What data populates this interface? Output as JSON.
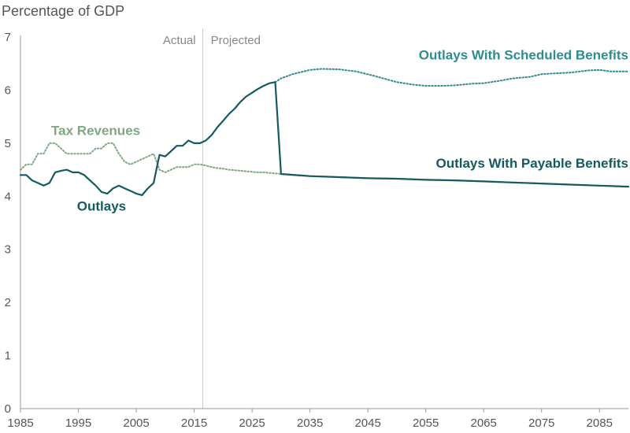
{
  "chart_data": {
    "type": "line",
    "ylabel": "Percentage of GDP",
    "xlim": [
      1985,
      2090
    ],
    "ylim": [
      0,
      7
    ],
    "x_ticks": [
      1985,
      1995,
      2005,
      2015,
      2025,
      2035,
      2045,
      2055,
      2065,
      2075,
      2085
    ],
    "y_ticks": [
      0,
      1,
      2,
      3,
      4,
      5,
      6,
      7
    ],
    "grid": false,
    "divider": {
      "x": 2016.5,
      "left_label": "Actual",
      "right_label": "Projected"
    },
    "colors": {
      "outlays": "#145A5E",
      "scheduled": "#2F8B8C",
      "payable": "#145A5E",
      "revenues": "#7FA782",
      "axis": "#999999",
      "divider": "#C8C8C8"
    },
    "series": [
      {
        "name": "Tax Revenues",
        "style": "dotted",
        "x": [
          1985,
          1986,
          1987,
          1988,
          1989,
          1990,
          1991,
          1992,
          1993,
          1994,
          1995,
          1996,
          1997,
          1998,
          1999,
          2000,
          2001,
          2002,
          2003,
          2004,
          2005,
          2006,
          2007,
          2008,
          2009,
          2010,
          2011,
          2012,
          2013,
          2014,
          2015,
          2016,
          2017,
          2018,
          2019,
          2020,
          2021,
          2022,
          2023,
          2024,
          2025,
          2026,
          2027,
          2028,
          2029,
          2030,
          2035,
          2040,
          2045,
          2050,
          2055,
          2060,
          2065,
          2070,
          2075,
          2080,
          2085,
          2090
        ],
        "values": [
          4.5,
          4.6,
          4.6,
          4.8,
          4.8,
          5.0,
          5.0,
          4.9,
          4.8,
          4.8,
          4.8,
          4.8,
          4.8,
          4.9,
          4.9,
          5.0,
          5.0,
          4.8,
          4.65,
          4.6,
          4.65,
          4.7,
          4.75,
          4.8,
          4.5,
          4.45,
          4.5,
          4.55,
          4.55,
          4.55,
          4.6,
          4.6,
          4.58,
          4.55,
          4.53,
          4.52,
          4.5,
          4.49,
          4.48,
          4.47,
          4.46,
          4.45,
          4.45,
          4.44,
          4.43,
          4.42,
          4.38,
          4.36,
          4.34,
          4.33,
          4.31,
          4.3,
          4.28,
          4.26,
          4.24,
          4.22,
          4.2,
          4.18
        ]
      },
      {
        "name": "Outlays",
        "style": "solid",
        "x": [
          1985,
          1986,
          1987,
          1988,
          1989,
          1990,
          1991,
          1992,
          1993,
          1994,
          1995,
          1996,
          1997,
          1998,
          1999,
          2000,
          2001,
          2002,
          2003,
          2004,
          2005,
          2006,
          2007,
          2008,
          2009,
          2010,
          2011,
          2012,
          2013,
          2014,
          2015,
          2016
        ],
        "values": [
          4.4,
          4.4,
          4.3,
          4.25,
          4.2,
          4.25,
          4.45,
          4.48,
          4.5,
          4.45,
          4.45,
          4.4,
          4.3,
          4.2,
          4.08,
          4.05,
          4.15,
          4.2,
          4.15,
          4.1,
          4.05,
          4.02,
          4.15,
          4.25,
          4.78,
          4.75,
          4.85,
          4.95,
          4.95,
          5.05,
          5.0,
          5.0
        ]
      },
      {
        "name": "Outlays With Scheduled Benefits",
        "style": "dotted",
        "x": [
          2029,
          2030,
          2032,
          2035,
          2037,
          2040,
          2043,
          2046,
          2050,
          2053,
          2055,
          2058,
          2060,
          2063,
          2065,
          2068,
          2070,
          2073,
          2075,
          2078,
          2080,
          2083,
          2085,
          2087,
          2090
        ],
        "values": [
          6.15,
          6.22,
          6.3,
          6.38,
          6.4,
          6.39,
          6.35,
          6.27,
          6.15,
          6.1,
          6.08,
          6.08,
          6.09,
          6.12,
          6.13,
          6.18,
          6.22,
          6.25,
          6.3,
          6.32,
          6.33,
          6.37,
          6.38,
          6.35,
          6.35
        ]
      },
      {
        "name": "Outlays With Payable Benefits",
        "style": "solid",
        "x": [
          2016,
          2017,
          2018,
          2019,
          2020,
          2021,
          2022,
          2023,
          2024,
          2025,
          2026,
          2027,
          2028,
          2029,
          2030,
          2035,
          2040,
          2045,
          2050,
          2055,
          2060,
          2065,
          2070,
          2075,
          2080,
          2085,
          2090
        ],
        "values": [
          5.0,
          5.05,
          5.15,
          5.3,
          5.42,
          5.55,
          5.65,
          5.78,
          5.88,
          5.95,
          6.02,
          6.08,
          6.13,
          6.15,
          4.42,
          4.38,
          4.36,
          4.34,
          4.33,
          4.31,
          4.3,
          4.28,
          4.26,
          4.24,
          4.22,
          4.2,
          4.18
        ]
      }
    ],
    "annotations": [
      {
        "text": "Tax Revenues",
        "x": 1998,
        "y": 5.15,
        "color": "#7FA782",
        "anchor": "middle"
      },
      {
        "text": "Outlays",
        "x": 1999,
        "y": 3.73,
        "color": "#145A5E",
        "anchor": "middle"
      },
      {
        "text": "Outlays With Scheduled Benefits",
        "x": 2090,
        "y": 6.58,
        "color": "#2F8B8C",
        "anchor": "end"
      },
      {
        "text": "Outlays With Payable Benefits",
        "x": 2090,
        "y": 4.54,
        "color": "#145A5E",
        "anchor": "end"
      }
    ]
  }
}
